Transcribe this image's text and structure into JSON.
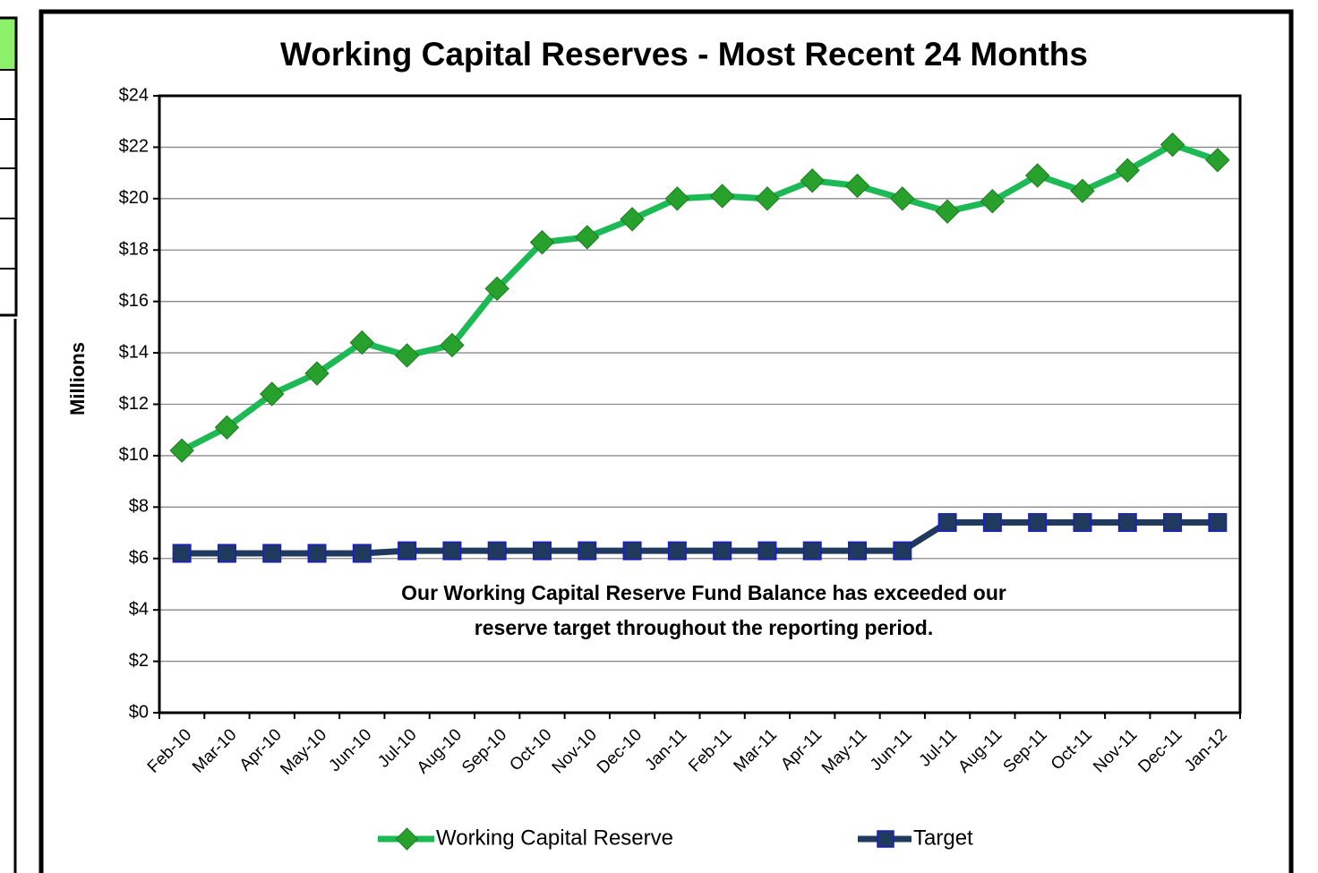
{
  "chart_data": {
    "type": "line",
    "title": "Working Capital Reserves - Most Recent 24 Months",
    "ylabel": "Millions",
    "categories": [
      "Feb-10",
      "Mar-10",
      "Apr-10",
      "May-10",
      "Jun-10",
      "Jul-10",
      "Aug-10",
      "Sep-10",
      "Oct-10",
      "Nov-10",
      "Dec-10",
      "Jan-11",
      "Feb-11",
      "Mar-11",
      "Apr-11",
      "May-11",
      "Jun-11",
      "Jul-11",
      "Aug-11",
      "Sep-11",
      "Oct-11",
      "Nov-11",
      "Dec-11",
      "Jan-12"
    ],
    "series": [
      {
        "name": "Working Capital Reserve",
        "color": "#1db954",
        "marker_color": "#28a02c",
        "marker": "diamond",
        "values": [
          10.2,
          11.1,
          12.4,
          13.2,
          14.4,
          13.9,
          14.3,
          16.5,
          18.3,
          18.5,
          19.2,
          20.0,
          20.1,
          20.0,
          20.7,
          20.5,
          20.0,
          19.5,
          19.9,
          20.9,
          20.3,
          21.1,
          22.1,
          21.5
        ]
      },
      {
        "name": "Target",
        "color": "#1f3a5c",
        "marker_color": "#1f3a5c",
        "marker": "square",
        "values": [
          6.2,
          6.2,
          6.2,
          6.2,
          6.2,
          6.3,
          6.3,
          6.3,
          6.3,
          6.3,
          6.3,
          6.3,
          6.3,
          6.3,
          6.3,
          6.3,
          6.3,
          7.4,
          7.4,
          7.4,
          7.4,
          7.4,
          7.4,
          7.4
        ]
      }
    ],
    "ylim": [
      0,
      24
    ],
    "yticks": [
      {
        "value": 0,
        "label": "$0"
      },
      {
        "value": 2,
        "label": "$2"
      },
      {
        "value": 4,
        "label": "$4"
      },
      {
        "value": 6,
        "label": "$6"
      },
      {
        "value": 8,
        "label": "$8"
      },
      {
        "value": 10,
        "label": "$10"
      },
      {
        "value": 12,
        "label": "$12"
      },
      {
        "value": 14,
        "label": "$14"
      },
      {
        "value": 16,
        "label": "$16"
      },
      {
        "value": 18,
        "label": "$18"
      },
      {
        "value": 20,
        "label": "$20"
      },
      {
        "value": 22,
        "label": "$22"
      },
      {
        "value": 24,
        "label": "$24"
      }
    ],
    "grid": true,
    "legend": "bottom",
    "annotation": [
      "Our Working Capital Reserve Fund Balance has exceeded our",
      "reserve target throughout the reporting period."
    ]
  }
}
